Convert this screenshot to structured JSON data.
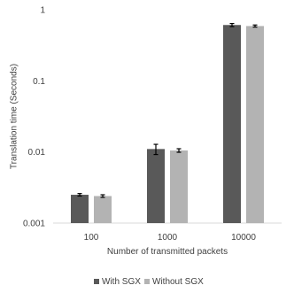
{
  "chart_data": {
    "type": "bar",
    "title": "",
    "xlabel": "Number of transmitted packets",
    "ylabel": "Translation time (Seconds)",
    "yscale": "log",
    "ylim": [
      0.001,
      1
    ],
    "yticks": [
      {
        "value": 0.001,
        "label": "0.001"
      },
      {
        "value": 0.01,
        "label": "0.01"
      },
      {
        "value": 0.1,
        "label": "0.1"
      },
      {
        "value": 1,
        "label": "1"
      }
    ],
    "categories": [
      "100",
      "1000",
      "10000"
    ],
    "series": [
      {
        "name": "With SGX",
        "color": "#595959",
        "values": [
          0.0025,
          0.011,
          0.61
        ],
        "errors": [
          0.0001,
          0.0018,
          0.03
        ]
      },
      {
        "name": "Without SGX",
        "color": "#b3b3b3",
        "values": [
          0.0024,
          0.0105,
          0.59
        ],
        "errors": [
          0.0001,
          0.0006,
          0.02
        ]
      }
    ],
    "grid": false,
    "legend": "bottom"
  }
}
